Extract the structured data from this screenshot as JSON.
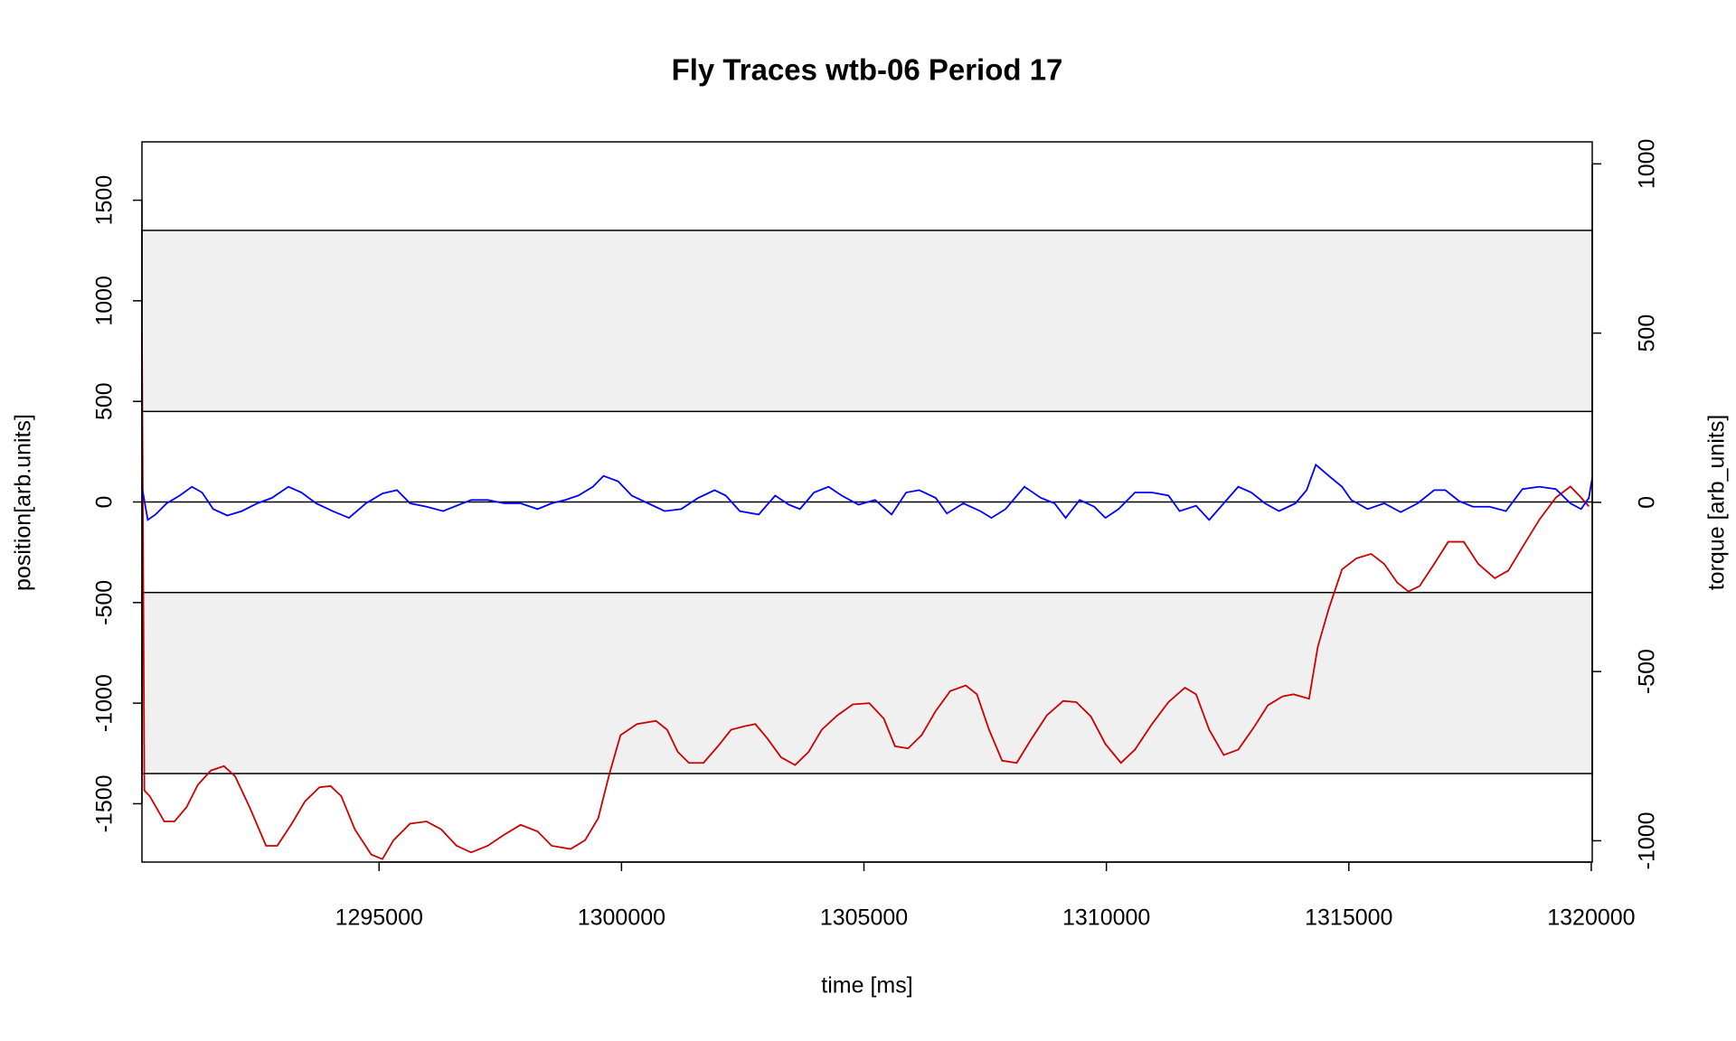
{
  "chart_data": {
    "type": "line",
    "title": "Fly Traces wtb-06 Period 17",
    "xlabel": "time [ms]",
    "ylabel": "position[arb.units]",
    "y2label": "torque [arb_units]",
    "xlim": [
      1290110,
      1320020
    ],
    "xticks": [
      1295000,
      1300000,
      1305000,
      1310000,
      1315000,
      1320000
    ],
    "ylim": [
      -1790,
      1790
    ],
    "yticks": [
      -1500,
      -1000,
      -500,
      0,
      500,
      1000,
      1500
    ],
    "y2lim": [
      -1063,
      1065
    ],
    "y2ticks": [
      -1000,
      -500,
      0,
      500,
      1000
    ],
    "bands": [
      [
        450,
        1350
      ],
      [
        -1350,
        -450
      ]
    ],
    "band_color": "#f0f0f0",
    "hlines": [
      0
    ],
    "series": [
      {
        "color": "#cc0000",
        "axis": "y",
        "x": [
          1290110,
          1290160,
          1290270,
          1290570,
          1290780,
          1291030,
          1291260,
          1291530,
          1291800,
          1292030,
          1292330,
          1292670,
          1292900,
          1293200,
          1293470,
          1293770,
          1294000,
          1294220,
          1294500,
          1294840,
          1295070,
          1295300,
          1295640,
          1295980,
          1296280,
          1296600,
          1296900,
          1297240,
          1297580,
          1297920,
          1298270,
          1298560,
          1298950,
          1299250,
          1299520,
          1299750,
          1299980,
          1300320,
          1300710,
          1300940,
          1301160,
          1301390,
          1301690,
          1301990,
          1302260,
          1302530,
          1302760,
          1303010,
          1303290,
          1303580,
          1303860,
          1304130,
          1304450,
          1304770,
          1305110,
          1305410,
          1305640,
          1305910,
          1306190,
          1306480,
          1306780,
          1307100,
          1307330,
          1307580,
          1307850,
          1308150,
          1308430,
          1308770,
          1309110,
          1309380,
          1309680,
          1309980,
          1310300,
          1310590,
          1310940,
          1311280,
          1311620,
          1311850,
          1312120,
          1312420,
          1312720,
          1313040,
          1313330,
          1313630,
          1313860,
          1314180,
          1314360,
          1314590,
          1314860,
          1315160,
          1315460,
          1315730,
          1316000,
          1316230,
          1316460,
          1316760,
          1317050,
          1317370,
          1317670,
          1318010,
          1318290,
          1318580,
          1318930,
          1319270,
          1319570,
          1319790,
          1319950
        ],
        "values": [
          846,
          -1434,
          -1462,
          -1588,
          -1588,
          -1517,
          -1407,
          -1335,
          -1313,
          -1363,
          -1517,
          -1709,
          -1709,
          -1599,
          -1489,
          -1418,
          -1412,
          -1462,
          -1627,
          -1753,
          -1775,
          -1681,
          -1599,
          -1588,
          -1627,
          -1709,
          -1742,
          -1709,
          -1654,
          -1605,
          -1638,
          -1709,
          -1725,
          -1681,
          -1572,
          -1352,
          -1159,
          -1104,
          -1088,
          -1132,
          -1242,
          -1297,
          -1297,
          -1214,
          -1132,
          -1115,
          -1104,
          -1176,
          -1269,
          -1308,
          -1242,
          -1132,
          -1061,
          -1006,
          -1000,
          -1077,
          -1214,
          -1225,
          -1159,
          -1039,
          -940,
          -912,
          -956,
          -1132,
          -1286,
          -1297,
          -1187,
          -1061,
          -989,
          -995,
          -1066,
          -1203,
          -1297,
          -1231,
          -1104,
          -995,
          -923,
          -956,
          -1132,
          -1258,
          -1231,
          -1121,
          -1011,
          -967,
          -956,
          -978,
          -720,
          -528,
          -335,
          -280,
          -258,
          -308,
          -401,
          -445,
          -418,
          -308,
          -198,
          -198,
          -308,
          -379,
          -341,
          -225,
          -88,
          22,
          77,
          22,
          -22
        ]
      },
      {
        "color": "#0000ff",
        "axis": "y2",
        "x": [
          1290110,
          1290230,
          1290390,
          1290620,
          1290890,
          1291140,
          1291350,
          1291580,
          1291870,
          1292170,
          1292490,
          1292790,
          1293130,
          1293400,
          1293700,
          1294040,
          1294380,
          1294730,
          1295070,
          1295370,
          1295640,
          1295980,
          1296320,
          1296600,
          1296900,
          1297240,
          1297580,
          1297920,
          1298270,
          1298560,
          1298840,
          1299110,
          1299410,
          1299630,
          1299930,
          1300210,
          1300550,
          1300890,
          1301230,
          1301580,
          1301920,
          1302150,
          1302440,
          1302830,
          1303170,
          1303450,
          1303680,
          1303970,
          1304270,
          1304540,
          1304890,
          1305230,
          1305570,
          1305870,
          1306140,
          1306480,
          1306710,
          1307050,
          1307400,
          1307630,
          1307920,
          1308310,
          1308650,
          1308930,
          1309160,
          1309450,
          1309750,
          1309980,
          1310250,
          1310590,
          1310940,
          1311280,
          1311510,
          1311850,
          1312120,
          1312420,
          1312720,
          1312990,
          1313270,
          1313560,
          1313900,
          1314130,
          1314320,
          1314590,
          1314860,
          1315050,
          1315390,
          1315730,
          1316070,
          1316420,
          1316760,
          1316990,
          1317280,
          1317560,
          1317900,
          1318240,
          1318580,
          1318930,
          1319270,
          1319570,
          1319790,
          1319950,
          1320020
        ],
        "values": [
          46,
          -52,
          -36,
          -3,
          20,
          46,
          29,
          -20,
          -39,
          -26,
          -3,
          13,
          46,
          29,
          -3,
          -26,
          -46,
          -3,
          26,
          36,
          -3,
          -13,
          -26,
          -10,
          7,
          7,
          -3,
          -3,
          -20,
          -3,
          7,
          20,
          46,
          78,
          62,
          20,
          -3,
          -26,
          -20,
          13,
          36,
          20,
          -26,
          -36,
          20,
          -7,
          -20,
          29,
          46,
          20,
          -7,
          7,
          -36,
          29,
          36,
          13,
          -33,
          -3,
          -26,
          -46,
          -20,
          46,
          13,
          -3,
          -46,
          7,
          -13,
          -46,
          -20,
          29,
          29,
          20,
          -26,
          -10,
          -52,
          -3,
          46,
          29,
          -3,
          -26,
          -3,
          36,
          111,
          78,
          46,
          7,
          -20,
          -3,
          -29,
          -3,
          36,
          36,
          3,
          -13,
          -13,
          -26,
          39,
          46,
          39,
          -3,
          -20,
          13,
          72
        ]
      }
    ]
  }
}
